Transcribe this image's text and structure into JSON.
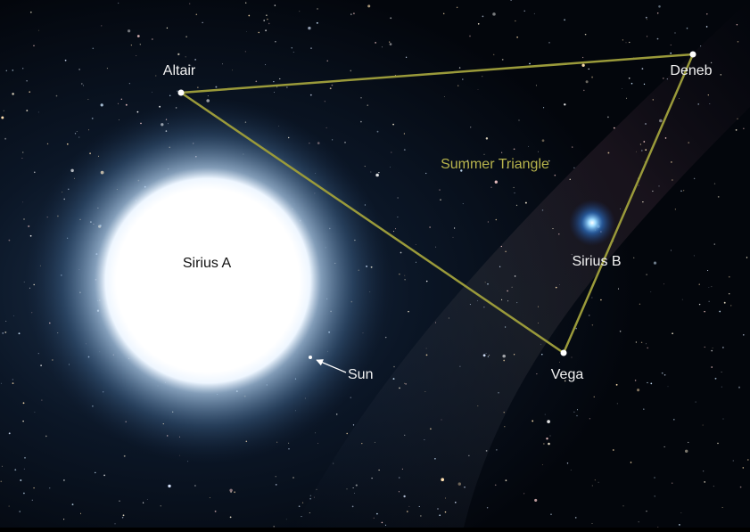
{
  "labels": {
    "altair": "Altair",
    "deneb": "Deneb",
    "vega": "Vega",
    "summer_triangle": "Summer Triangle",
    "sirius_a": "Sirius A",
    "sirius_b": "Sirius B",
    "sun": "Sun"
  }
}
